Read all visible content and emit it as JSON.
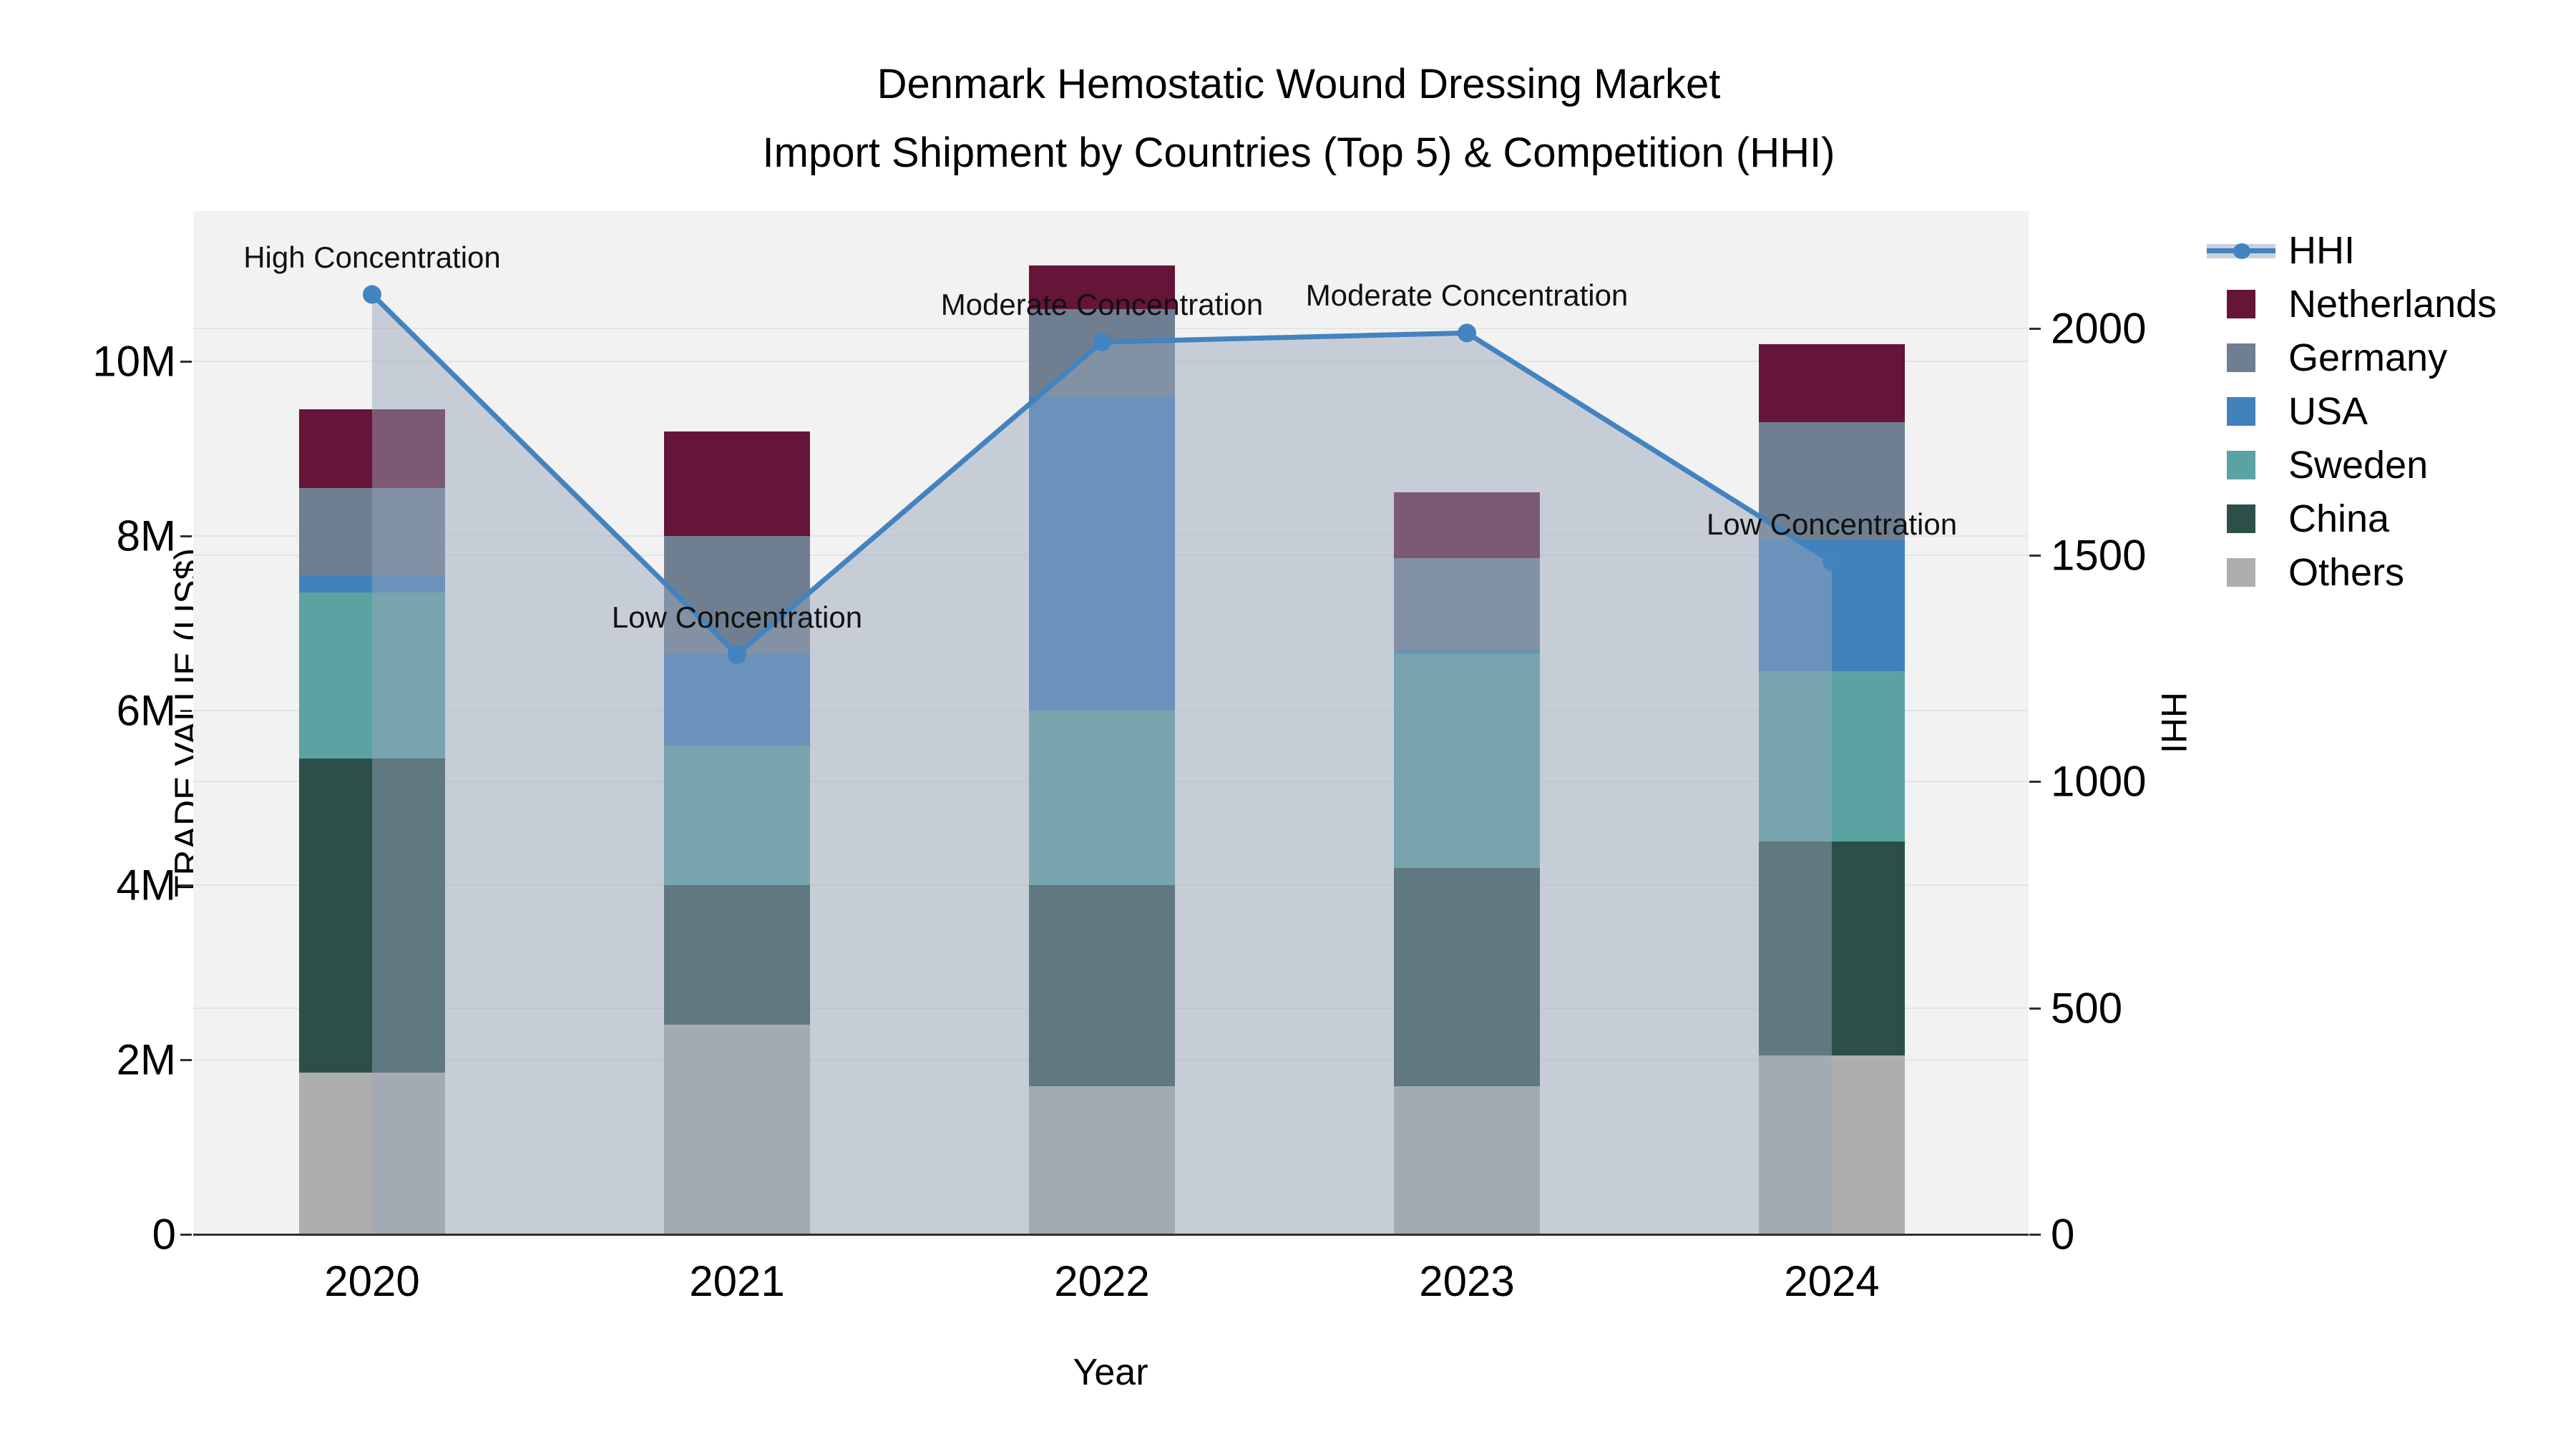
{
  "title": {
    "line1": "Denmark Hemostatic Wound Dressing Market",
    "line2": "Import Shipment by Countries (Top 5) & Competition (HHI)"
  },
  "axes": {
    "x": {
      "title": "Year",
      "categories": [
        "2020",
        "2021",
        "2022",
        "2023",
        "2024"
      ]
    },
    "y_left": {
      "title": "TRADE VALUE (US$)",
      "tick_labels": [
        "0",
        "2M",
        "4M",
        "6M",
        "8M",
        "10M"
      ],
      "tick_values_millions": [
        0,
        2,
        4,
        6,
        8,
        10
      ]
    },
    "y_right": {
      "title": "HHI",
      "tick_labels": [
        "0",
        "500",
        "1000",
        "1500",
        "2000"
      ],
      "tick_values": [
        0,
        500,
        1000,
        1500,
        2000
      ]
    }
  },
  "legend": {
    "entries": [
      {
        "id": "hhi",
        "label": "HHI",
        "type": "line"
      },
      {
        "id": "netherlands",
        "label": "Netherlands",
        "type": "swatch"
      },
      {
        "id": "germany",
        "label": "Germany",
        "type": "swatch"
      },
      {
        "id": "usa",
        "label": "USA",
        "type": "swatch"
      },
      {
        "id": "sweden",
        "label": "Sweden",
        "type": "swatch"
      },
      {
        "id": "china",
        "label": "China",
        "type": "swatch"
      },
      {
        "id": "others",
        "label": "Others",
        "type": "swatch"
      }
    ]
  },
  "colors": {
    "netherlands": "#651538",
    "germany": "#6f7f91",
    "usa": "#4181bc",
    "sweden": "#5ba3a3",
    "china": "#2d4f4a",
    "others": "#aeaeae",
    "hhi_line": "#4383bf",
    "hhi_area_fill": "rgba(152,165,187,0.48)",
    "plot_background": "#f2f2f2",
    "gridline": "#e4e4e4",
    "axis_line": "#2f2f2f"
  },
  "chart_data": {
    "type": "bar",
    "subtype": "stacked-bars-with-line-overlay",
    "unit": "million US$",
    "categories": [
      "2020",
      "2021",
      "2022",
      "2023",
      "2024"
    ],
    "stack_order_bottom_to_top": [
      "others",
      "china",
      "sweden",
      "usa",
      "germany",
      "netherlands"
    ],
    "series": [
      {
        "id": "others",
        "name": "Others",
        "values": [
          1.85,
          2.4,
          1.7,
          1.7,
          2.05
        ]
      },
      {
        "id": "china",
        "name": "China",
        "values": [
          3.6,
          1.6,
          2.3,
          2.5,
          2.45
        ]
      },
      {
        "id": "sweden",
        "name": "Sweden",
        "values": [
          1.9,
          1.6,
          2.0,
          2.45,
          1.95
        ]
      },
      {
        "id": "usa",
        "name": "USA",
        "values": [
          0.2,
          1.05,
          3.6,
          0.05,
          1.5
        ]
      },
      {
        "id": "germany",
        "name": "Germany",
        "values": [
          1.0,
          1.35,
          1.0,
          1.05,
          1.35
        ]
      },
      {
        "id": "netherlands",
        "name": "Netherlands",
        "values": [
          0.9,
          1.2,
          0.5,
          0.75,
          0.9
        ]
      }
    ],
    "bar_totals_millions": [
      9.45,
      9.2,
      11.1,
      8.5,
      10.2
    ],
    "line_series": {
      "name": "HHI",
      "axis": "right",
      "values": [
        2075,
        1280,
        1970,
        1990,
        1485
      ]
    },
    "annotations": [
      {
        "category": "2020",
        "text": "High Concentration"
      },
      {
        "category": "2021",
        "text": "Low Concentration"
      },
      {
        "category": "2022",
        "text": "Moderate Concentration"
      },
      {
        "category": "2023",
        "text": "Moderate Concentration"
      },
      {
        "category": "2024",
        "text": "Low Concentration"
      }
    ],
    "ylim_left_millions": [
      0,
      11.7
    ],
    "ylim_right_hhi": [
      0,
      2260
    ],
    "grid": true,
    "legend_position": "right"
  }
}
